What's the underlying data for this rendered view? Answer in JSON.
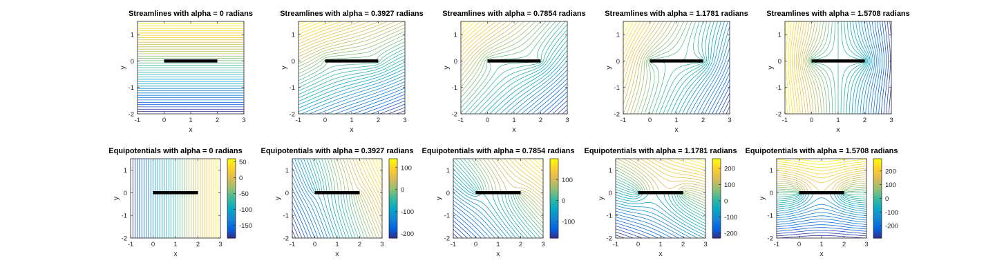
{
  "colors": {
    "parula": [
      "#352a87",
      "#0363e1",
      "#1485d4",
      "#06a7c6",
      "#38b99e",
      "#92bf73",
      "#d9ba56",
      "#fcce2e",
      "#f9fb0e"
    ],
    "plate": "#000000",
    "box": "#222222"
  },
  "chart_data": [
    {
      "type": "contour",
      "row": 0,
      "col": 0,
      "kind": "streamlines",
      "alpha": 0,
      "title": "Streamlines with alpha = 0 radians",
      "xlabel": "x",
      "ylabel": "y",
      "xlim": [
        -1,
        3
      ],
      "ylim": [
        -2,
        1.5
      ],
      "xticks": [
        -1,
        0,
        1,
        2,
        3
      ],
      "yticks": [
        -2,
        -1,
        0,
        1
      ],
      "plate": {
        "x": [
          0,
          2
        ],
        "y": 0
      },
      "colorbar": null
    },
    {
      "type": "contour",
      "row": 0,
      "col": 1,
      "kind": "streamlines",
      "alpha": 0.3927,
      "title": "Streamlines with alpha = 0.3927 radians",
      "xlabel": "x",
      "ylabel": "y",
      "xlim": [
        -1,
        3
      ],
      "ylim": [
        -2,
        1.5
      ],
      "xticks": [
        -1,
        0,
        1,
        2,
        3
      ],
      "yticks": [
        -2,
        -1,
        0,
        1
      ],
      "plate": {
        "x": [
          0,
          2
        ],
        "y": 0
      },
      "colorbar": null
    },
    {
      "type": "contour",
      "row": 0,
      "col": 2,
      "kind": "streamlines",
      "alpha": 0.7854,
      "title": "Streamlines with alpha = 0.7854 radians",
      "xlabel": "x",
      "ylabel": "y",
      "xlim": [
        -1,
        3
      ],
      "ylim": [
        -2,
        1.5
      ],
      "xticks": [
        -1,
        0,
        1,
        2,
        3
      ],
      "yticks": [
        -2,
        -1,
        0,
        1
      ],
      "plate": {
        "x": [
          0,
          2
        ],
        "y": 0
      },
      "colorbar": null
    },
    {
      "type": "contour",
      "row": 0,
      "col": 3,
      "kind": "streamlines",
      "alpha": 1.1781,
      "title": "Streamlines with alpha = 1.1781 radians",
      "xlabel": "x",
      "ylabel": "y",
      "xlim": [
        -1,
        3
      ],
      "ylim": [
        -2,
        1.5
      ],
      "xticks": [
        -1,
        0,
        1,
        2,
        3
      ],
      "yticks": [
        -2,
        -1,
        0,
        1
      ],
      "plate": {
        "x": [
          0,
          2
        ],
        "y": 0
      },
      "colorbar": null
    },
    {
      "type": "contour",
      "row": 0,
      "col": 4,
      "kind": "streamlines",
      "alpha": 1.5708,
      "title": "Streamlines with alpha = 1.5708 radians",
      "xlabel": "x",
      "ylabel": "y",
      "xlim": [
        -1,
        3
      ],
      "ylim": [
        -2,
        1.5
      ],
      "xticks": [
        -1,
        0,
        1,
        2,
        3
      ],
      "yticks": [
        -2,
        -1,
        0,
        1
      ],
      "plate": {
        "x": [
          0,
          2
        ],
        "y": 0
      },
      "colorbar": null
    },
    {
      "type": "contour",
      "row": 1,
      "col": 0,
      "kind": "equipotentials",
      "alpha": 0,
      "title": "Equipotentials with alpha = 0 radians",
      "xlabel": "x",
      "ylabel": "y",
      "xlim": [
        -1,
        3
      ],
      "ylim": [
        -2,
        1.5
      ],
      "xticks": [
        -1,
        0,
        1,
        2,
        3
      ],
      "yticks": [
        -2,
        -1,
        0,
        1
      ],
      "plate": {
        "x": [
          0,
          2
        ],
        "y": 0
      },
      "colorbar": {
        "range": [
          -190,
          60
        ],
        "ticks": [
          50,
          0,
          -50,
          -100,
          -150
        ]
      }
    },
    {
      "type": "contour",
      "row": 1,
      "col": 1,
      "kind": "equipotentials",
      "alpha": 0.3927,
      "title": "Equipotentials with alpha = 0.3927 radians",
      "xlabel": "x",
      "ylabel": "y",
      "xlim": [
        -1,
        3
      ],
      "ylim": [
        -2,
        1.5
      ],
      "xticks": [
        -1,
        0,
        1,
        2,
        3
      ],
      "yticks": [
        -2,
        -1,
        0,
        1
      ],
      "plate": {
        "x": [
          0,
          2
        ],
        "y": 0
      },
      "colorbar": {
        "range": [
          -220,
          140
        ],
        "ticks": [
          100,
          0,
          -100,
          -200
        ]
      }
    },
    {
      "type": "contour",
      "row": 1,
      "col": 2,
      "kind": "equipotentials",
      "alpha": 0.7854,
      "title": "Equipotentials with alpha = 0.7854 radians",
      "xlabel": "x",
      "ylabel": "y",
      "xlim": [
        -1,
        3
      ],
      "ylim": [
        -2,
        1.5
      ],
      "xticks": [
        -1,
        0,
        1,
        2,
        3
      ],
      "yticks": [
        -2,
        -1,
        0,
        1
      ],
      "plate": {
        "x": [
          0,
          2
        ],
        "y": 0
      },
      "colorbar": {
        "range": [
          -180,
          200
        ],
        "ticks": [
          100,
          0,
          -100
        ]
      }
    },
    {
      "type": "contour",
      "row": 1,
      "col": 3,
      "kind": "equipotentials",
      "alpha": 1.1781,
      "title": "Equipotentials with alpha = 1.1781 radians",
      "xlabel": "x",
      "ylabel": "y",
      "xlim": [
        -1,
        3
      ],
      "ylim": [
        -2,
        1.5
      ],
      "xticks": [
        -1,
        0,
        1,
        2,
        3
      ],
      "yticks": [
        -2,
        -1,
        0,
        1
      ],
      "plate": {
        "x": [
          0,
          2
        ],
        "y": 0
      },
      "colorbar": {
        "range": [
          -230,
          260
        ],
        "ticks": [
          200,
          100,
          0,
          -100,
          -200
        ]
      }
    },
    {
      "type": "contour",
      "row": 1,
      "col": 4,
      "kind": "equipotentials",
      "alpha": 1.5708,
      "title": "Equipotentials with alpha = 1.5708 radians",
      "xlabel": "x",
      "ylabel": "y",
      "xlim": [
        -1,
        3
      ],
      "ylim": [
        -2,
        1.5
      ],
      "xticks": [
        -1,
        0,
        1,
        2,
        3
      ],
      "yticks": [
        -2,
        -1,
        0,
        1
      ],
      "plate": {
        "x": [
          0,
          2
        ],
        "y": 0
      },
      "colorbar": {
        "range": [
          -290,
          290
        ],
        "ticks": [
          200,
          100,
          0,
          -100,
          -200
        ]
      }
    }
  ]
}
